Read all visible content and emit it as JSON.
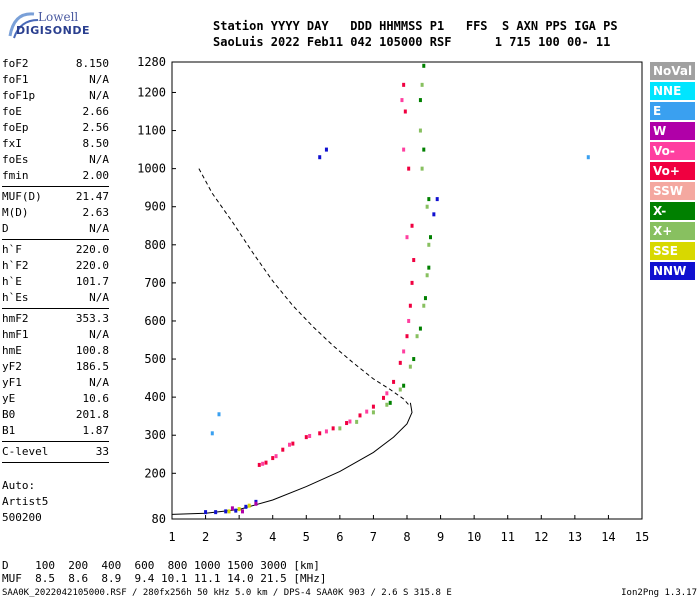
{
  "logo": {
    "line1": "Lowell",
    "line2": "DIGISONDE"
  },
  "header": {
    "line1": "Station YYYY DAY   DDD HHMMSS P1   FFS  S AXN PPS IGA PS",
    "line2": "SaoLuis 2022 Feb11 042 105000 RSF      1 715 100 00- 11"
  },
  "params": [
    {
      "label": "foF2",
      "value": "8.150"
    },
    {
      "label": "foF1",
      "value": "N/A"
    },
    {
      "label": "foF1p",
      "value": "N/A"
    },
    {
      "label": "foE",
      "value": "2.66"
    },
    {
      "label": "foEp",
      "value": "2.56"
    },
    {
      "label": "fxI",
      "value": "8.50"
    },
    {
      "label": "foEs",
      "value": "N/A"
    },
    {
      "label": "fmin",
      "value": "2.00",
      "sep": true
    },
    {
      "label": "MUF(D)",
      "value": "21.47"
    },
    {
      "label": "M(D)",
      "value": "2.63"
    },
    {
      "label": "D",
      "value": "N/A",
      "sep": true
    },
    {
      "label": "h`F",
      "value": "220.0"
    },
    {
      "label": "h`F2",
      "value": "220.0"
    },
    {
      "label": "h`E",
      "value": "101.7"
    },
    {
      "label": "h`Es",
      "value": "N/A",
      "sep": true
    },
    {
      "label": "hmF2",
      "value": "353.3"
    },
    {
      "label": "hmF1",
      "value": "N/A"
    },
    {
      "label": "hmE",
      "value": "100.8"
    },
    {
      "label": "yF2",
      "value": "186.5"
    },
    {
      "label": "yF1",
      "value": "N/A"
    },
    {
      "label": "yE",
      "value": "10.6"
    },
    {
      "label": "B0",
      "value": "201.8"
    },
    {
      "label": "B1",
      "value": "1.87",
      "sep": true
    },
    {
      "label": "C-level",
      "value": "33",
      "sep": true
    }
  ],
  "auto": {
    "line1": "Auto:",
    "line2": "Artist5",
    "line3": "500200"
  },
  "legend": [
    {
      "label": "NoVal",
      "color": "#a0a0a0"
    },
    {
      "label": "NNE",
      "color": "#00e5ff"
    },
    {
      "label": "E",
      "color": "#3aa0f0"
    },
    {
      "label": "W",
      "color": "#b000a8"
    },
    {
      "label": "Vo-",
      "color": "#ff3fa0"
    },
    {
      "label": "Vo+",
      "color": "#f00040"
    },
    {
      "label": "SSW",
      "color": "#f4a8a0"
    },
    {
      "label": "X-",
      "color": "#008000"
    },
    {
      "label": "X+",
      "color": "#88c060"
    },
    {
      "label": "SSE",
      "color": "#d8d800"
    },
    {
      "label": "NNW",
      "color": "#1010d0"
    }
  ],
  "bottom": {
    "line1": "D    100  200  400  600  800 1000 1500 3000 [km]",
    "line2": "MUF  8.5  8.6  8.9  9.4 10.1 11.1 14.0 21.5 [MHz]"
  },
  "footer": {
    "left": "SAA0K_2022042105000.RSF / 280fx256h 50 kHz 5.0 km / DPS-4 SAA0K 903 / 2.6 S 315.8 E",
    "right": "Ion2Png 1.3.17"
  },
  "chart_data": {
    "type": "scatter",
    "xlim": [
      1,
      15
    ],
    "ylim": [
      80,
      1280
    ],
    "x_ticks": [
      "1",
      "2",
      "3",
      "4",
      "5",
      "6",
      "7",
      "8",
      "9",
      "10",
      "11",
      "12",
      "13",
      "14",
      "15"
    ],
    "y_ticks": [
      "80",
      "200",
      "300",
      "400",
      "500",
      "600",
      "700",
      "800",
      "900",
      "1000",
      "1100",
      "1200",
      "1280"
    ],
    "series": [
      {
        "color": "#f00040",
        "points": [
          [
            3.6,
            222
          ],
          [
            3.8,
            228
          ],
          [
            4.0,
            240
          ],
          [
            4.3,
            262
          ],
          [
            4.6,
            278
          ],
          [
            5.0,
            295
          ],
          [
            5.4,
            305
          ],
          [
            5.8,
            318
          ],
          [
            6.2,
            332
          ],
          [
            6.6,
            352
          ],
          [
            7.0,
            375
          ],
          [
            7.3,
            398
          ],
          [
            7.6,
            440
          ],
          [
            7.8,
            490
          ],
          [
            8.0,
            560
          ],
          [
            8.1,
            640
          ],
          [
            8.15,
            700
          ],
          [
            8.2,
            760
          ],
          [
            8.15,
            850
          ],
          [
            8.05,
            1000
          ],
          [
            7.95,
            1150
          ],
          [
            7.9,
            1220
          ]
        ]
      },
      {
        "color": "#ff3fa0",
        "points": [
          [
            3.7,
            225
          ],
          [
            4.1,
            245
          ],
          [
            4.5,
            275
          ],
          [
            5.1,
            298
          ],
          [
            5.6,
            310
          ],
          [
            6.3,
            336
          ],
          [
            6.8,
            362
          ],
          [
            7.4,
            410
          ],
          [
            7.9,
            520
          ],
          [
            8.05,
            600
          ],
          [
            8.0,
            820
          ],
          [
            7.9,
            1050
          ],
          [
            7.85,
            1180
          ]
        ]
      },
      {
        "color": "#88c060",
        "points": [
          [
            6.0,
            318
          ],
          [
            6.5,
            335
          ],
          [
            7.0,
            360
          ],
          [
            7.4,
            380
          ],
          [
            7.8,
            420
          ],
          [
            8.1,
            480
          ],
          [
            8.3,
            560
          ],
          [
            8.5,
            640
          ],
          [
            8.6,
            720
          ],
          [
            8.65,
            800
          ],
          [
            8.6,
            900
          ],
          [
            8.45,
            1000
          ],
          [
            8.4,
            1100
          ],
          [
            8.45,
            1220
          ]
        ]
      },
      {
        "color": "#008000",
        "points": [
          [
            7.5,
            385
          ],
          [
            7.9,
            430
          ],
          [
            8.2,
            500
          ],
          [
            8.4,
            580
          ],
          [
            8.55,
            660
          ],
          [
            8.65,
            740
          ],
          [
            8.7,
            820
          ],
          [
            8.65,
            920
          ],
          [
            8.5,
            1050
          ],
          [
            8.4,
            1180
          ],
          [
            8.5,
            1270
          ]
        ]
      },
      {
        "color": "#1010d0",
        "points": [
          [
            2.0,
            98
          ],
          [
            2.3,
            98
          ],
          [
            2.6,
            100
          ],
          [
            2.9,
            102
          ],
          [
            3.2,
            112
          ],
          [
            3.5,
            125
          ],
          [
            5.4,
            1030
          ],
          [
            5.6,
            1050
          ],
          [
            8.8,
            880
          ],
          [
            8.9,
            920
          ]
        ]
      },
      {
        "color": "#3aa0f0",
        "points": [
          [
            13.4,
            1030
          ],
          [
            2.2,
            305
          ],
          [
            2.4,
            355
          ]
        ]
      },
      {
        "color": "#d8d800",
        "points": [
          [
            2.7,
            100
          ],
          [
            3.0,
            106
          ],
          [
            3.3,
            115
          ]
        ]
      },
      {
        "color": "#b000a8",
        "points": [
          [
            2.8,
            108
          ],
          [
            3.1,
            100
          ],
          [
            3.5,
            120
          ]
        ]
      }
    ],
    "curves": [
      {
        "style": "dashed",
        "points": [
          [
            1.8,
            1000
          ],
          [
            2.2,
            935
          ],
          [
            2.8,
            860
          ],
          [
            3.4,
            780
          ],
          [
            4.0,
            705
          ],
          [
            4.6,
            640
          ],
          [
            5.2,
            585
          ],
          [
            5.8,
            535
          ],
          [
            6.4,
            490
          ],
          [
            7.0,
            448
          ],
          [
            7.5,
            420
          ],
          [
            7.9,
            395
          ],
          [
            8.1,
            375
          ]
        ]
      },
      {
        "style": "solid",
        "points": [
          [
            1.0,
            92
          ],
          [
            2.0,
            95
          ],
          [
            3.0,
            105
          ],
          [
            4.0,
            130
          ],
          [
            5.0,
            165
          ],
          [
            6.0,
            205
          ],
          [
            7.0,
            255
          ],
          [
            7.6,
            295
          ],
          [
            8.0,
            330
          ],
          [
            8.15,
            360
          ],
          [
            8.1,
            385
          ]
        ]
      }
    ]
  }
}
